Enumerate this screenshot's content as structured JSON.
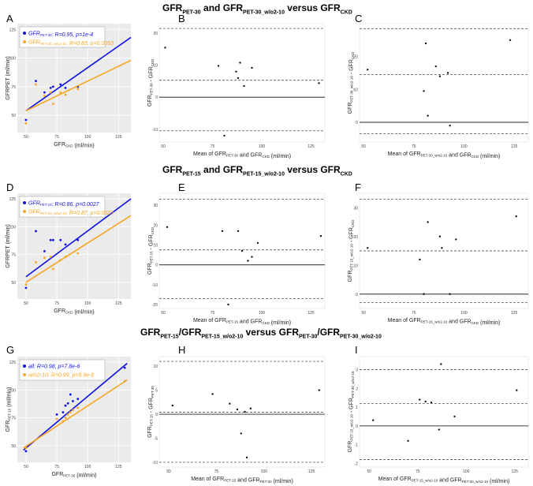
{
  "row_titles": [
    {
      "parts": [
        [
          "GFR",
          ""
        ],
        [
          "PET-30",
          "sub"
        ],
        [
          " and GFR",
          ""
        ],
        [
          "PET-30_w/o2-10",
          "sub"
        ],
        [
          " versus GFR",
          ""
        ],
        [
          "CKD",
          "sub"
        ]
      ]
    },
    {
      "parts": [
        [
          "GFR",
          ""
        ],
        [
          "PET-15",
          "sub"
        ],
        [
          " and GFR",
          ""
        ],
        [
          "PET-15_w/o2-10",
          "sub"
        ],
        [
          " versus GFR",
          ""
        ],
        [
          "CKD",
          "sub"
        ]
      ]
    },
    {
      "parts": [
        [
          "GFR",
          ""
        ],
        [
          "PET-15",
          "sub"
        ],
        [
          "/GFR",
          ""
        ],
        [
          "PET-15_w/o2-10",
          "sub"
        ],
        [
          " versus GFR",
          ""
        ],
        [
          "PET-30",
          "sub"
        ],
        [
          "/GFR",
          ""
        ],
        [
          "PET-30_w/o2-10",
          "sub"
        ]
      ]
    }
  ],
  "panel_letters": [
    "A",
    "B",
    "C",
    "D",
    "E",
    "F",
    "G",
    "H",
    "I"
  ],
  "colors": {
    "blue": "#1010e0",
    "orange": "#f5a623",
    "panel_bg": "#ebebeb",
    "grid": "#ffffff",
    "dark": "#222222"
  },
  "chart_data": [
    {
      "panel": "A",
      "type": "scatter",
      "xlim": [
        43,
        135
      ],
      "ylim": [
        35,
        130
      ],
      "xticks": [
        50,
        75,
        100,
        125
      ],
      "yticks": [
        50,
        75,
        100,
        125
      ],
      "xlabel": [
        [
          "GFR",
          ""
        ],
        [
          "CKD",
          "s"
        ],
        [
          " (ml/min)",
          ""
        ]
      ],
      "ylabel": [
        [
          "GFR",
          ""
        ],
        [
          "PET",
          ""
        ],
        [
          " (ml/min)",
          ""
        ]
      ],
      "legend_position": "top-left",
      "series": [
        {
          "name": "GFRPET-30",
          "label": [
            [
              "GFR",
              ""
            ],
            [
              "PET-30",
              "s"
            ],
            [
              ": R=0.95, p=1e-4",
              ""
            ]
          ],
          "color": "#1010e0",
          "points": [
            [
              50,
              46
            ],
            [
              58,
              80
            ],
            [
              65,
              70
            ],
            [
              70,
              74
            ],
            [
              72,
              75
            ],
            [
              78,
              77
            ],
            [
              82,
              74
            ],
            [
              92,
              75
            ]
          ],
          "fit": [
            [
              50,
              54
            ],
            [
              135,
              118
            ]
          ]
        },
        {
          "name": "GFRPET-30_w/o2-10",
          "label": [
            [
              "GFR",
              ""
            ],
            [
              "PET-30_w/o2-10",
              "s"
            ],
            [
              ": R=0.83, p=0.0053",
              ""
            ]
          ],
          "color": "#f5a623",
          "points": [
            [
              50,
              43
            ],
            [
              58,
              77
            ],
            [
              65,
              67
            ],
            [
              70,
              70
            ],
            [
              72,
              60
            ],
            [
              78,
              70
            ],
            [
              82,
              68
            ],
            [
              92,
              73
            ]
          ],
          "fit": [
            [
              50,
              54
            ],
            [
              135,
              98
            ]
          ]
        }
      ]
    },
    {
      "panel": "B",
      "type": "bland-altman",
      "xlim": [
        48,
        132
      ],
      "ylim": [
        -14,
        23
      ],
      "xticks": [
        50,
        75,
        100,
        125
      ],
      "yticks": [
        -10,
        0,
        10,
        20
      ],
      "xlabel": [
        [
          "Mean of GFR",
          ""
        ],
        [
          "PET-30",
          "s"
        ],
        [
          " and GFR",
          ""
        ],
        [
          "CKD",
          "s"
        ],
        [
          " (ml/min)",
          ""
        ]
      ],
      "ylabel": [
        [
          "GFR",
          ""
        ],
        [
          "PET-30",
          "s"
        ],
        [
          " - GFR",
          ""
        ],
        [
          "CKD",
          "s"
        ]
      ],
      "points": [
        [
          51,
          15.5
        ],
        [
          78,
          9.8
        ],
        [
          81,
          -12
        ],
        [
          87,
          8
        ],
        [
          88,
          6
        ],
        [
          89,
          10.8
        ],
        [
          91,
          3.5
        ],
        [
          95,
          9.2
        ],
        [
          129,
          4.4
        ]
      ],
      "mean": 0,
      "upper_loa": 21.5,
      "lower_loa": -10.5,
      "mid_line": 5.3
    },
    {
      "panel": "C",
      "type": "bland-altman",
      "xlim": [
        48,
        132
      ],
      "ylim": [
        -6,
        30
      ],
      "xticks": [
        50,
        75,
        100,
        125
      ],
      "yticks": [
        0,
        10,
        20
      ],
      "xlabel": [
        [
          "Mean of GFR",
          ""
        ],
        [
          "PET-30_w/o2-10",
          "s"
        ],
        [
          " and GFR",
          ""
        ],
        [
          "CKD",
          "s"
        ],
        [
          " (ml/min)",
          ""
        ]
      ],
      "ylabel": [
        [
          "GFR",
          ""
        ],
        [
          "PET-30_w/o2-10",
          "s"
        ],
        [
          " - GFR",
          ""
        ],
        [
          "CKD",
          "s"
        ]
      ],
      "points": [
        [
          52,
          16
        ],
        [
          80,
          9.5
        ],
        [
          81,
          24
        ],
        [
          82,
          2
        ],
        [
          86,
          17
        ],
        [
          88,
          14
        ],
        [
          92,
          15
        ],
        [
          93,
          -1
        ],
        [
          123,
          25
        ]
      ],
      "mean": 0,
      "upper_loa": 28.5,
      "lower_loa": -3.5,
      "mid_line": 14.5
    },
    {
      "panel": "D",
      "type": "scatter",
      "xlim": [
        43,
        135
      ],
      "ylim": [
        35,
        130
      ],
      "xticks": [
        50,
        75,
        100,
        125
      ],
      "yticks": [
        50,
        75,
        100,
        125
      ],
      "xlabel": [
        [
          "GFR",
          ""
        ],
        [
          "CKD",
          "s"
        ],
        [
          " (ml/min)",
          ""
        ]
      ],
      "ylabel": [
        [
          "GFR",
          ""
        ],
        [
          "PET",
          ""
        ],
        [
          " (ml/min)",
          ""
        ]
      ],
      "legend_position": "top-left",
      "series": [
        {
          "name": "GFRPET-15",
          "label": [
            [
              "GFR",
              ""
            ],
            [
              "PET-15",
              "s"
            ],
            [
              ": R=0.86, p=0.0027",
              ""
            ]
          ],
          "color": "#1010e0",
          "points": [
            [
              50,
              45
            ],
            [
              58,
              96
            ],
            [
              65,
              78
            ],
            [
              70,
              88
            ],
            [
              72,
              88
            ],
            [
              78,
              88
            ],
            [
              82,
              84
            ],
            [
              92,
              88
            ]
          ],
          "fit": [
            [
              50,
              55
            ],
            [
              135,
              125
            ]
          ]
        },
        {
          "name": "GFRPET-15_w/o2-10",
          "label": [
            [
              "GFR",
              ""
            ],
            [
              "PET-15_w/o2-10",
              "s"
            ],
            [
              ": R=0.87, p=0.0023",
              ""
            ]
          ],
          "color": "#f5a623",
          "points": [
            [
              50,
              48
            ],
            [
              58,
              68
            ],
            [
              65,
              72
            ],
            [
              70,
              73
            ],
            [
              72,
              62
            ],
            [
              78,
              70
            ],
            [
              82,
              73
            ],
            [
              92,
              76
            ]
          ],
          "fit": [
            [
              50,
              50
            ],
            [
              135,
              110
            ]
          ]
        }
      ]
    },
    {
      "panel": "E",
      "type": "bland-altman",
      "xlim": [
        48,
        132
      ],
      "ylim": [
        -22,
        36
      ],
      "xticks": [
        50,
        75,
        100,
        125
      ],
      "yticks": [
        -20,
        -10,
        0,
        10,
        20,
        30
      ],
      "xlabel": [
        [
          "Mean of GFR",
          ""
        ],
        [
          "PET-15",
          "s"
        ],
        [
          " and GFR",
          ""
        ],
        [
          "CKD",
          "s"
        ],
        [
          " (ml/min)",
          ""
        ]
      ],
      "ylabel": [
        [
          "GFR",
          ""
        ],
        [
          "PET-15",
          "s"
        ],
        [
          " - GFR",
          ""
        ],
        [
          "CKD",
          "s"
        ]
      ],
      "points": [
        [
          52,
          19
        ],
        [
          80,
          17
        ],
        [
          83,
          -20
        ],
        [
          88,
          17
        ],
        [
          90,
          7
        ],
        [
          93,
          2
        ],
        [
          95,
          4
        ],
        [
          98,
          11
        ],
        [
          130,
          14.5
        ]
      ],
      "mean": 0,
      "upper_loa": 33,
      "lower_loa": -17,
      "mid_line": 7.5
    },
    {
      "panel": "F",
      "type": "bland-altman",
      "xlim": [
        48,
        132
      ],
      "ylim": [
        -5,
        35
      ],
      "xticks": [
        50,
        75,
        100,
        125
      ],
      "yticks": [
        0,
        10,
        20,
        30
      ],
      "xlabel": [
        [
          "Mean of GFR",
          ""
        ],
        [
          "PET-15_w/o2-10",
          "s"
        ],
        [
          " and GFR",
          ""
        ],
        [
          "CKD",
          "s"
        ],
        [
          " (ml/min)",
          ""
        ]
      ],
      "ylabel": [
        [
          "GFR",
          ""
        ],
        [
          "PET-15_w/o2-10",
          "s"
        ],
        [
          " - GFR",
          ""
        ],
        [
          "CKD",
          "s"
        ]
      ],
      "points": [
        [
          52,
          16
        ],
        [
          78,
          12
        ],
        [
          80,
          0
        ],
        [
          82,
          25
        ],
        [
          88,
          20
        ],
        [
          89,
          16
        ],
        [
          93,
          0
        ],
        [
          96,
          19
        ],
        [
          126,
          27
        ]
      ],
      "mean": 0,
      "upper_loa": 33,
      "lower_loa": -3,
      "mid_line": 15
    },
    {
      "panel": "G",
      "type": "scatter",
      "xlim": [
        43,
        135
      ],
      "ylim": [
        35,
        130
      ],
      "xticks": [
        50,
        75,
        100,
        125
      ],
      "yticks": [
        50,
        75,
        100,
        125
      ],
      "xlabel": [
        [
          "GFR",
          ""
        ],
        [
          "PET-30",
          "s"
        ],
        [
          " (ml/min)",
          ""
        ]
      ],
      "ylabel": [
        [
          "GFR",
          ""
        ],
        [
          "PET-15",
          "s"
        ],
        [
          " (ml/min)",
          ""
        ]
      ],
      "legend_position": "top-left",
      "series": [
        {
          "name": "all",
          "label": [
            [
              "all: R=0.98, p=7.8e-6",
              ""
            ]
          ],
          "color": "#1010e0",
          "points": [
            [
              50,
              45
            ],
            [
              75,
              78
            ],
            [
              80,
              80
            ],
            [
              82,
              86
            ],
            [
              84,
              88
            ],
            [
              86,
              96
            ],
            [
              88,
              90
            ],
            [
              92,
              92
            ],
            [
              130,
              120
            ]
          ],
          "fit": [
            [
              48,
              46
            ],
            [
              132,
              124
            ]
          ]
        },
        {
          "name": "w/o2-10",
          "label": [
            [
              "w/o2-10: R=0.99, p=9.9e-8",
              ""
            ]
          ],
          "color": "#f5a623",
          "points": [
            [
              50,
              48
            ],
            [
              75,
              74
            ],
            [
              80,
              72
            ],
            [
              82,
              75
            ],
            [
              84,
              78
            ],
            [
              86,
              80
            ],
            [
              88,
              82
            ],
            [
              92,
              84
            ],
            [
              130,
              108
            ]
          ],
          "fit": [
            [
              48,
              48
            ],
            [
              132,
              109
            ]
          ]
        }
      ]
    },
    {
      "panel": "H",
      "type": "bland-altman",
      "xlim": [
        45,
        132
      ],
      "ylim": [
        -11,
        12
      ],
      "xticks": [
        50,
        75,
        100,
        125
      ],
      "yticks": [
        -10,
        -5,
        0,
        5,
        10
      ],
      "xlabel": [
        [
          "Mean of GFR",
          ""
        ],
        [
          "PET-15",
          "s"
        ],
        [
          " and GFR",
          ""
        ],
        [
          "PET-30",
          "s"
        ],
        [
          " (ml/min)",
          ""
        ]
      ],
      "ylabel": [
        [
          "GFR",
          ""
        ],
        [
          "PET-15",
          "s"
        ],
        [
          " - GFR",
          ""
        ],
        [
          "PET-30",
          "s"
        ]
      ],
      "points": [
        [
          52,
          1.8
        ],
        [
          73,
          4.2
        ],
        [
          82,
          2.2
        ],
        [
          86,
          1
        ],
        [
          88,
          -4
        ],
        [
          90,
          0.5
        ],
        [
          91,
          -9
        ],
        [
          93,
          1.2
        ],
        [
          129,
          5
        ]
      ],
      "mean": 0,
      "upper_loa": 11,
      "lower_loa": -10,
      "mid_line": 0.4
    },
    {
      "panel": "I",
      "type": "bland-altman",
      "xlim": [
        45,
        132
      ],
      "ylim": [
        -2.2,
        3.7
      ],
      "xticks": [
        50,
        75,
        100,
        125
      ],
      "yticks": [
        -2,
        -1,
        0,
        1,
        2,
        3
      ],
      "xlabel": [
        [
          "Mean of GFR",
          ""
        ],
        [
          "PET-15_w/o2-10",
          "s"
        ],
        [
          " and GFR",
          ""
        ],
        [
          "PET-30_w/o2-10",
          "s"
        ],
        [
          " (ml/min)",
          ""
        ]
      ],
      "ylabel": [
        [
          "GFR",
          ""
        ],
        [
          "PET-15_w/o2-10",
          "s"
        ],
        [
          " - GFR",
          ""
        ],
        [
          "PET-30_w/o2-10",
          "s"
        ]
      ],
      "points": [
        [
          52,
          0.3
        ],
        [
          70,
          -0.8
        ],
        [
          76,
          1.4
        ],
        [
          79,
          1.3
        ],
        [
          82,
          1.25
        ],
        [
          86,
          -0.2
        ],
        [
          87,
          3.3
        ],
        [
          94,
          0.5
        ],
        [
          126,
          1.9
        ]
      ],
      "mean": 0,
      "upper_loa": 3.0,
      "lower_loa": -1.8,
      "mid_line": 1.2
    }
  ]
}
